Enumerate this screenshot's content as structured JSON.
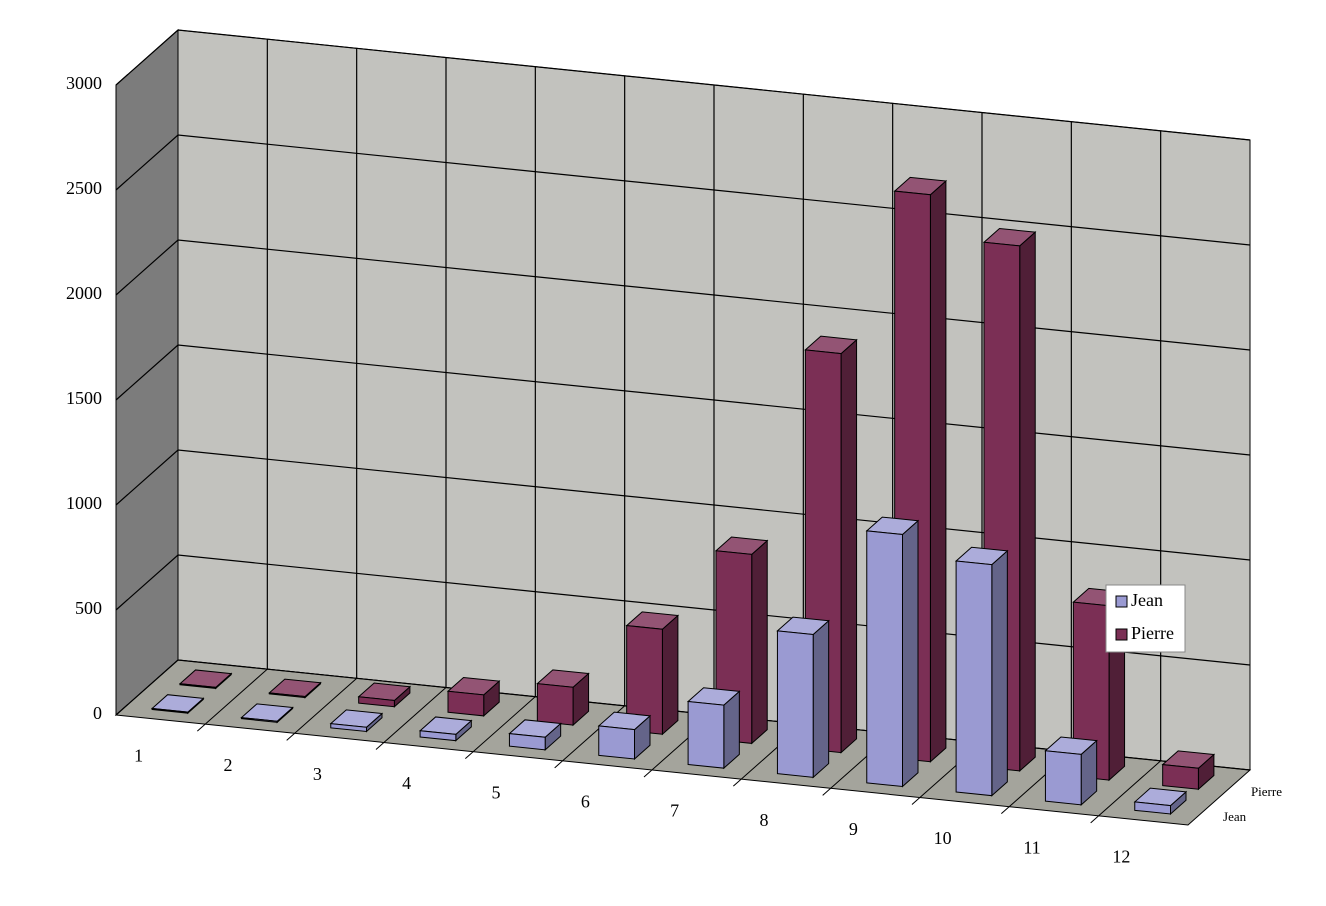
{
  "chart_data": {
    "type": "bar3d",
    "categories": [
      "1",
      "2",
      "3",
      "4",
      "5",
      "6",
      "7",
      "8",
      "9",
      "10",
      "11",
      "12"
    ],
    "series": [
      {
        "name": "Jean",
        "color": "#9a9ad2",
        "values": [
          5,
          5,
          20,
          30,
          60,
          140,
          300,
          680,
          1200,
          1100,
          240,
          40
        ]
      },
      {
        "name": "Pierre",
        "color": "#7b2f55",
        "values": [
          5,
          5,
          30,
          100,
          180,
          500,
          900,
          1900,
          2700,
          2500,
          830,
          100
        ]
      }
    ],
    "ylim": [
      0,
      3000
    ],
    "yticks": [
      0,
      500,
      1000,
      1500,
      2000,
      2500,
      3000
    ],
    "grid": true
  }
}
